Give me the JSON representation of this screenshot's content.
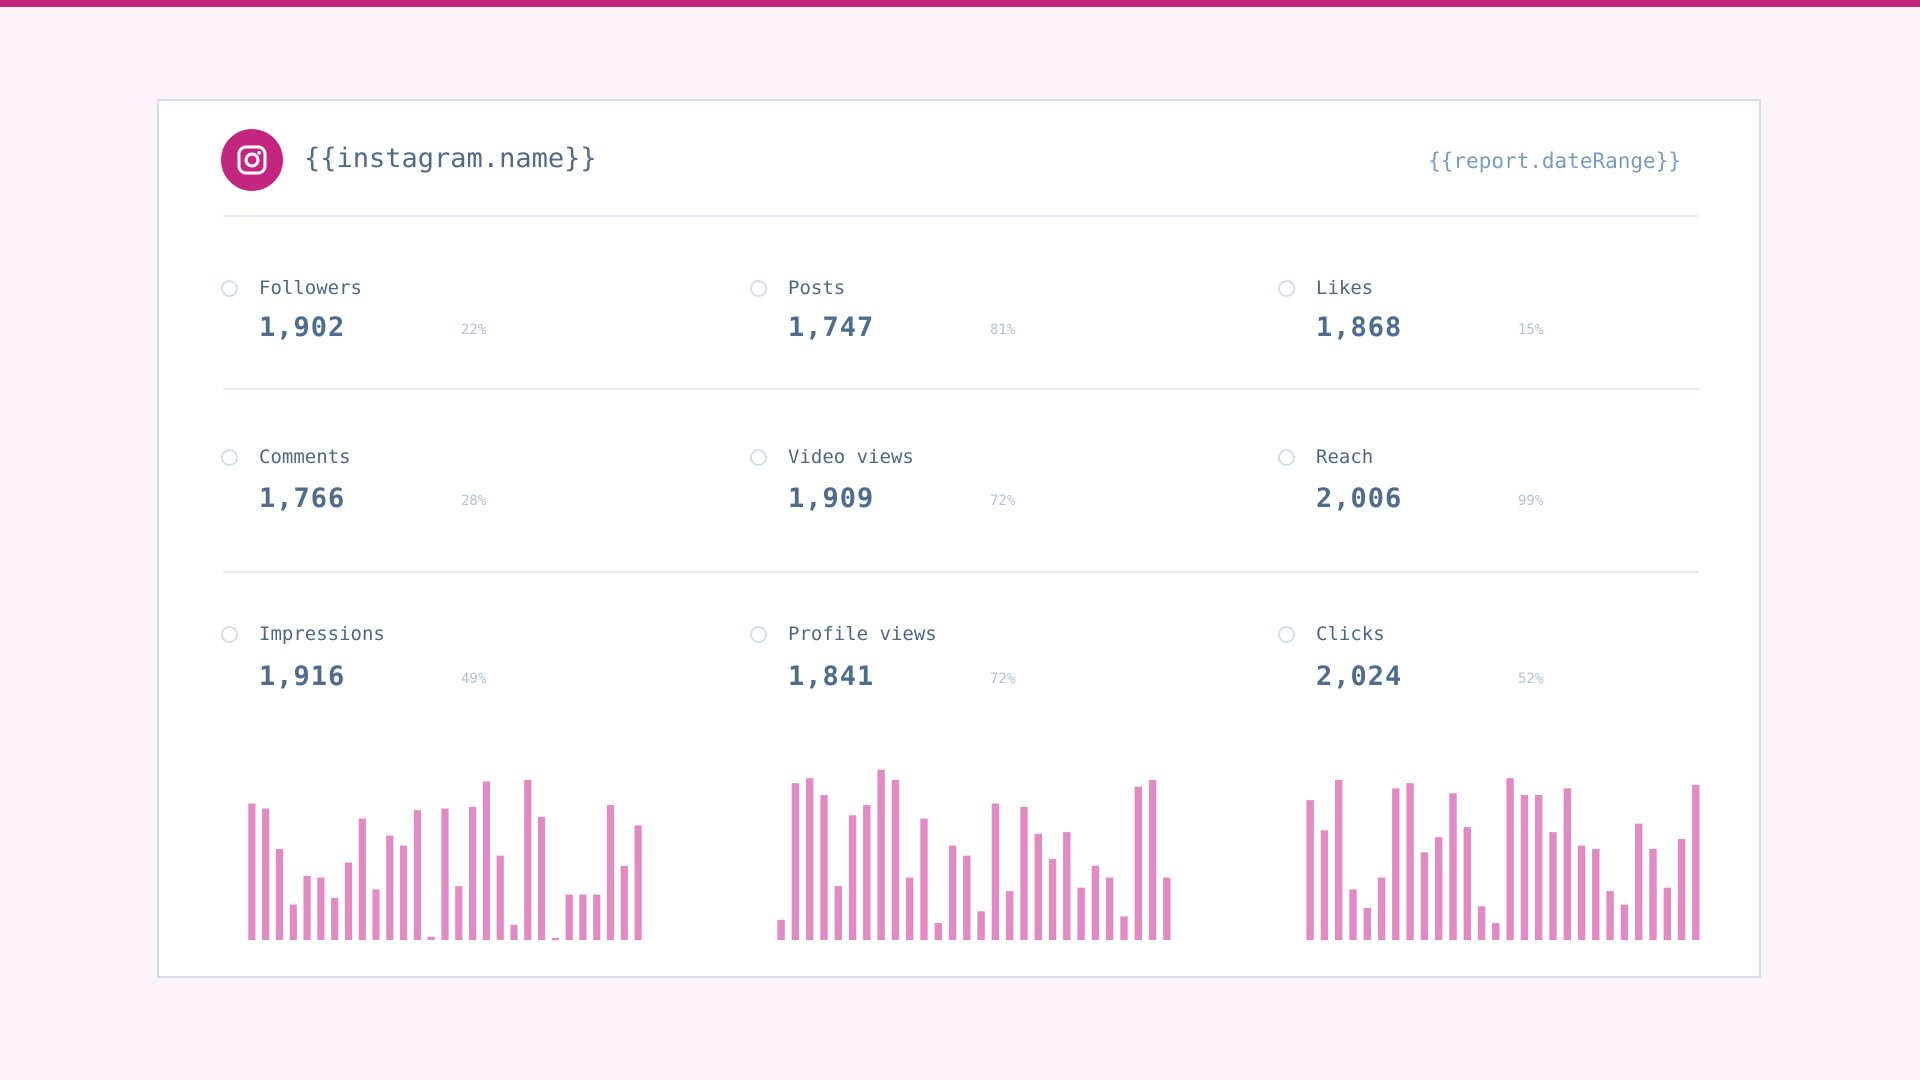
{
  "accent_color": "#c4267f",
  "bar_color": "#e28ac3",
  "header": {
    "logo_icon": "instagram-icon",
    "account_name": "{{instagram.name}}",
    "date_range": "{{report.dateRange}}"
  },
  "metrics": [
    {
      "label": "Followers",
      "value": "1,902",
      "change": "22%"
    },
    {
      "label": "Posts",
      "value": "1,747",
      "change": "81%"
    },
    {
      "label": "Likes",
      "value": "1,868",
      "change": "15%"
    },
    {
      "label": "Comments",
      "value": "1,766",
      "change": "28%"
    },
    {
      "label": "Video views",
      "value": "1,909",
      "change": "72%"
    },
    {
      "label": "Reach",
      "value": "2,006",
      "change": "99%"
    },
    {
      "label": "Impressions",
      "value": "1,916",
      "change": "49%"
    },
    {
      "label": "Profile views",
      "value": "1,841",
      "change": "72%"
    },
    {
      "label": "Clicks",
      "value": "2,024",
      "change": "52%"
    }
  ],
  "chart_data": [
    {
      "type": "bar",
      "values": [
        81,
        78,
        54,
        21,
        38,
        37,
        25,
        46,
        72,
        30,
        62,
        56,
        77,
        2,
        78,
        32,
        79,
        94,
        50,
        9,
        95,
        73,
        1,
        27,
        27,
        27,
        80,
        44,
        68
      ]
    },
    {
      "type": "bar",
      "values": [
        12,
        93,
        96,
        86,
        32,
        74,
        80,
        101,
        95,
        37,
        72,
        10,
        56,
        50,
        17,
        81,
        29,
        79,
        63,
        48,
        64,
        31,
        44,
        37,
        14,
        91,
        95,
        37
      ]
    },
    {
      "type": "bar",
      "values": [
        83,
        65,
        95,
        30,
        19,
        37,
        90,
        93,
        52,
        61,
        87,
        67,
        20,
        10,
        96,
        86,
        86,
        64,
        90,
        56,
        54,
        29,
        21,
        69,
        54,
        31,
        60,
        92
      ]
    }
  ]
}
